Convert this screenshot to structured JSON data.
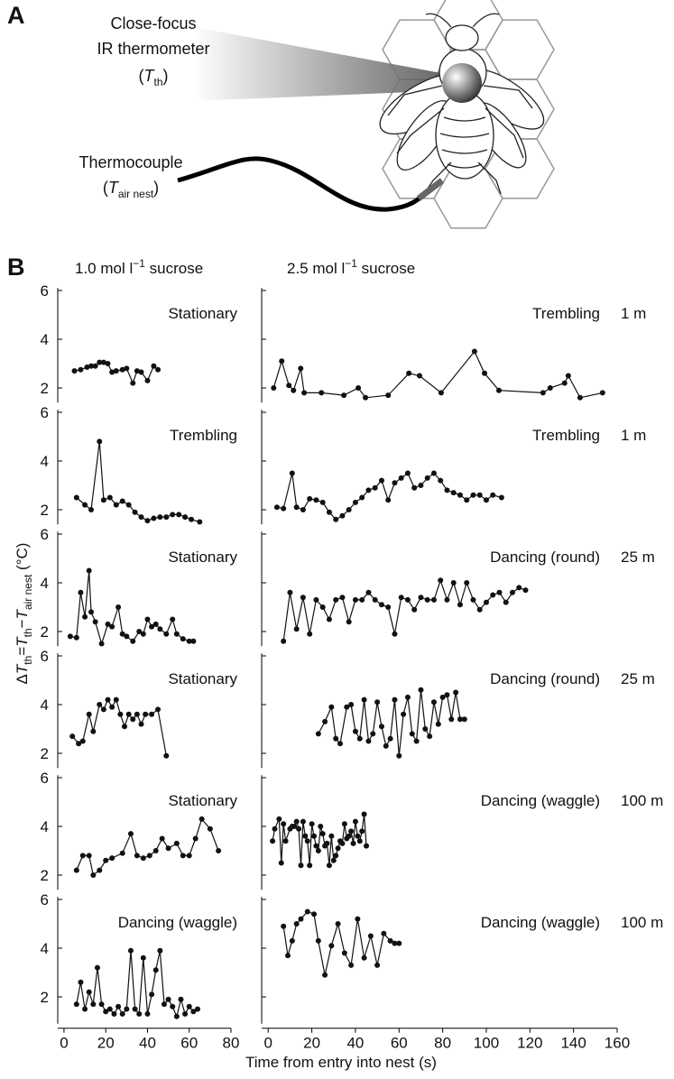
{
  "panel_a": {
    "letter": "A",
    "thermometer": [
      "Close-focus",
      "IR thermometer"
    ],
    "thermometer_symbol": [
      {
        "text": "("
      },
      {
        "text": "T",
        "style": "italic"
      },
      {
        "text": "th",
        "style": "sub"
      },
      {
        "text": ")"
      }
    ],
    "thermocouple": "Thermocouple",
    "thermocouple_symbol": [
      {
        "text": "("
      },
      {
        "text": "T",
        "style": "italic"
      },
      {
        "text": "air nest",
        "style": "sub"
      },
      {
        "text": ")"
      }
    ]
  },
  "panel_b": {
    "letter": "B",
    "column_titles": [
      [
        {
          "text": "1.0 mol l"
        },
        {
          "text": "−1",
          "style": "sup"
        },
        {
          "text": " sucrose"
        }
      ],
      [
        {
          "text": "2.5 mol l"
        },
        {
          "text": "−1",
          "style": "sup"
        },
        {
          "text": " sucrose"
        }
      ]
    ],
    "y_label": [
      {
        "text": "Δ"
      },
      {
        "text": "T",
        "style": "italic"
      },
      {
        "text": "th",
        "style": "sub"
      },
      {
        "text": "="
      },
      {
        "text": "T",
        "style": "italic"
      },
      {
        "text": "th",
        "style": "sub"
      },
      {
        "text": "−"
      },
      {
        "text": "T",
        "style": "italic"
      },
      {
        "text": "air nest",
        "style": "sub"
      },
      {
        "text": " (°C)"
      }
    ],
    "x_label": "Time from entry into nest (s)"
  },
  "chart_data": [
    {
      "type": "line",
      "title": "Stationary",
      "color": "#111",
      "xlim": [
        -3,
        80
      ],
      "ylim": [
        1.4,
        6.1
      ],
      "yticks": [
        2,
        4,
        6
      ],
      "ytick_labels": true,
      "x": [
        5,
        8,
        11,
        13,
        15,
        17,
        19,
        21,
        23,
        25,
        28,
        30,
        33,
        35,
        37,
        40,
        43,
        45
      ],
      "values": [
        2.7,
        2.75,
        2.85,
        2.9,
        2.9,
        3.05,
        3.05,
        3.0,
        2.65,
        2.7,
        2.75,
        2.8,
        2.2,
        2.7,
        2.65,
        2.3,
        2.9,
        2.75
      ]
    },
    {
      "type": "line",
      "title": "Trembling",
      "annotation": "1 m",
      "color": "#111",
      "xlim": [
        -3,
        160
      ],
      "ylim": [
        1.4,
        6.1
      ],
      "yticks": [
        2,
        4,
        6
      ],
      "ytick_labels": false,
      "x": [
        2.5,
        6.2,
        9.5,
        11.6,
        14.9,
        16.5,
        24.4,
        34.7,
        41.3,
        44.6,
        55,
        64.5,
        69.4,
        79.3,
        94.6,
        99.2,
        105.8,
        126,
        129.3,
        135.9,
        137.6,
        143,
        153.3
      ],
      "values": [
        2.0,
        3.1,
        2.1,
        1.9,
        2.8,
        1.8,
        1.8,
        1.7,
        2.0,
        1.6,
        1.7,
        2.6,
        2.5,
        1.8,
        3.5,
        2.6,
        1.9,
        1.8,
        2.0,
        2.2,
        2.5,
        1.6,
        1.8
      ]
    },
    {
      "type": "line",
      "title": "Trembling",
      "color": "#111",
      "xlim": [
        -3,
        80
      ],
      "ylim": [
        1.4,
        6.1
      ],
      "yticks": [
        2,
        4,
        6
      ],
      "ytick_labels": true,
      "x": [
        6,
        10,
        13,
        17,
        19,
        22,
        25,
        28,
        31,
        34,
        37,
        40,
        43,
        46,
        49,
        52,
        55,
        58,
        61,
        65
      ],
      "values": [
        2.5,
        2.2,
        2.0,
        4.8,
        2.4,
        2.5,
        2.2,
        2.35,
        2.2,
        1.9,
        1.7,
        1.55,
        1.65,
        1.7,
        1.7,
        1.8,
        1.8,
        1.7,
        1.6,
        1.5
      ]
    },
    {
      "type": "line",
      "title": "Trembling",
      "annotation": "1 m",
      "color": "#111",
      "xlim": [
        -3,
        160
      ],
      "ylim": [
        1.4,
        6.1
      ],
      "yticks": [
        2,
        4,
        6
      ],
      "ytick_labels": false,
      "x": [
        4,
        7,
        11,
        13,
        16,
        19,
        22,
        25,
        28,
        31,
        34,
        37,
        40,
        43,
        46,
        49,
        52,
        55,
        58,
        61,
        64,
        67,
        70,
        73,
        76,
        79,
        82,
        85,
        88,
        91,
        94,
        97,
        100,
        103,
        107
      ],
      "values": [
        2.1,
        2.05,
        3.5,
        2.1,
        2.0,
        2.45,
        2.4,
        2.3,
        1.9,
        1.6,
        1.75,
        2.0,
        2.3,
        2.5,
        2.8,
        2.9,
        3.2,
        2.4,
        3.1,
        3.3,
        3.5,
        2.9,
        3.0,
        3.3,
        3.5,
        3.2,
        2.8,
        2.7,
        2.6,
        2.4,
        2.6,
        2.6,
        2.4,
        2.6,
        2.5
      ]
    },
    {
      "type": "line",
      "title": "Stationary",
      "color": "#111",
      "xlim": [
        -3,
        80
      ],
      "ylim": [
        1.4,
        6.1
      ],
      "yticks": [
        2,
        4,
        6
      ],
      "ytick_labels": true,
      "x": [
        3,
        6,
        8,
        10,
        12,
        13,
        15,
        18,
        21,
        23,
        26,
        28,
        30,
        33,
        36,
        38,
        40,
        42,
        44,
        46,
        49,
        52,
        54,
        57,
        60,
        62
      ],
      "values": [
        1.8,
        1.75,
        3.6,
        2.6,
        4.5,
        2.8,
        2.4,
        1.5,
        2.3,
        2.2,
        3.0,
        1.9,
        1.8,
        1.6,
        2.0,
        1.9,
        2.5,
        2.2,
        2.3,
        2.1,
        1.9,
        2.5,
        1.9,
        1.7,
        1.6,
        1.6
      ]
    },
    {
      "type": "line",
      "title": "Dancing (round)",
      "annotation": "25 m",
      "color": "#111",
      "xlim": [
        -3,
        160
      ],
      "ylim": [
        1.4,
        6.1
      ],
      "yticks": [
        2,
        4,
        6
      ],
      "ytick_labels": false,
      "x": [
        7,
        10,
        13,
        16,
        19,
        22,
        25,
        28,
        31,
        34,
        37,
        40,
        43,
        46,
        49,
        52,
        55,
        58,
        61,
        64,
        67,
        70,
        73,
        76,
        79,
        82,
        85,
        88,
        91,
        94,
        97,
        100,
        103,
        106,
        109,
        112,
        115,
        118
      ],
      "values": [
        1.6,
        3.6,
        2.1,
        3.4,
        1.9,
        3.3,
        3.0,
        2.5,
        3.3,
        3.4,
        2.4,
        3.3,
        3.3,
        3.6,
        3.3,
        3.1,
        3.0,
        1.9,
        3.4,
        3.3,
        2.9,
        3.4,
        3.3,
        3.3,
        4.1,
        3.3,
        4.0,
        3.1,
        4.0,
        3.3,
        2.9,
        3.2,
        3.5,
        3.6,
        3.2,
        3.6,
        3.8,
        3.7
      ]
    },
    {
      "type": "line",
      "title": "Stationary",
      "color": "#111",
      "xlim": [
        -3,
        80
      ],
      "ylim": [
        1.4,
        6.1
      ],
      "yticks": [
        2,
        4,
        6
      ],
      "ytick_labels": true,
      "x": [
        4,
        7,
        9,
        12,
        14,
        17,
        19,
        21,
        23,
        25,
        27,
        29,
        31,
        33,
        35,
        37,
        39,
        42,
        45,
        49
      ],
      "values": [
        2.7,
        2.4,
        2.5,
        3.6,
        2.9,
        4.0,
        3.8,
        4.2,
        3.9,
        4.2,
        3.6,
        3.1,
        3.6,
        3.4,
        3.6,
        3.2,
        3.6,
        3.6,
        3.8,
        1.9
      ]
    },
    {
      "type": "line",
      "title": "Dancing (round)",
      "annotation": "25 m",
      "color": "#111",
      "xlim": [
        -3,
        160
      ],
      "ylim": [
        1.4,
        6.1
      ],
      "yticks": [
        2,
        4,
        6
      ],
      "ytick_labels": false,
      "x": [
        23,
        26,
        29,
        31,
        33,
        36,
        38,
        40,
        42,
        44,
        46,
        48,
        50,
        52,
        54,
        56,
        58,
        60,
        62,
        64,
        66,
        68,
        70,
        72,
        74,
        76,
        78,
        80,
        82,
        84,
        86,
        88,
        90
      ],
      "values": [
        2.8,
        3.3,
        3.9,
        2.6,
        2.4,
        3.9,
        4.0,
        2.9,
        2.6,
        4.2,
        2.5,
        2.8,
        4.1,
        3.1,
        2.3,
        2.6,
        4.2,
        1.9,
        3.6,
        4.3,
        2.8,
        2.5,
        4.6,
        3.0,
        2.7,
        4.1,
        3.2,
        4.3,
        4.4,
        3.4,
        4.5,
        3.4,
        3.4
      ]
    },
    {
      "type": "line",
      "title": "Stationary",
      "color": "#111",
      "xlim": [
        -3,
        80
      ],
      "ylim": [
        1.4,
        6.1
      ],
      "yticks": [
        2,
        4,
        6
      ],
      "ytick_labels": true,
      "x": [
        6,
        9,
        12,
        14,
        17,
        20,
        23,
        28,
        32,
        35,
        38,
        41,
        44,
        47,
        50,
        54,
        57,
        60,
        63,
        66,
        70,
        74
      ],
      "values": [
        2.2,
        2.8,
        2.8,
        2.0,
        2.2,
        2.6,
        2.7,
        2.9,
        3.7,
        2.8,
        2.7,
        2.8,
        3.0,
        3.5,
        3.1,
        3.3,
        2.8,
        2.8,
        3.5,
        4.3,
        3.9,
        3.0
      ]
    },
    {
      "type": "line",
      "title": "Dancing (waggle)",
      "annotation": "100 m",
      "color": "#111",
      "xlim": [
        -3,
        160
      ],
      "ylim": [
        1.4,
        6.1
      ],
      "yticks": [
        2,
        4,
        6
      ],
      "ytick_labels": false,
      "x": [
        2,
        3,
        5,
        6,
        7,
        8,
        10,
        11,
        12,
        13,
        14,
        15,
        16,
        17,
        18,
        19,
        20,
        21,
        22,
        23,
        24,
        25,
        26,
        27,
        28,
        29,
        30,
        31,
        32,
        33,
        34,
        35,
        36,
        37,
        38,
        39,
        40,
        41,
        42,
        43,
        44,
        45
      ],
      "values": [
        3.4,
        3.9,
        4.3,
        2.5,
        4.1,
        3.4,
        3.9,
        4.0,
        4.0,
        4.2,
        3.9,
        2.4,
        4.2,
        3.6,
        3.4,
        2.4,
        4.1,
        3.6,
        3.2,
        3.0,
        4.0,
        3.7,
        3.2,
        3.3,
        2.4,
        3.6,
        2.6,
        2.8,
        3.1,
        3.4,
        3.3,
        4.1,
        3.5,
        3.6,
        3.8,
        3.3,
        4.2,
        3.6,
        3.4,
        3.8,
        4.5,
        3.2
      ]
    },
    {
      "type": "line",
      "title": "Dancing (waggle)",
      "color": "#111",
      "xlim": [
        -3,
        80
      ],
      "ylim": [
        0.9,
        6.1
      ],
      "yticks": [
        2,
        4,
        6
      ],
      "ytick_labels": true,
      "xticks": [
        0,
        20,
        40,
        60,
        80
      ],
      "x": [
        6,
        8,
        10,
        12,
        14,
        16,
        18,
        20,
        22,
        24,
        26,
        28,
        30,
        32,
        34,
        36,
        38,
        40,
        42,
        44,
        46,
        48,
        50,
        52,
        54,
        56,
        58,
        60,
        62,
        64
      ],
      "values": [
        1.7,
        2.6,
        1.5,
        2.2,
        1.7,
        3.2,
        1.7,
        1.4,
        1.5,
        1.3,
        1.6,
        1.3,
        1.5,
        3.9,
        1.5,
        1.3,
        3.6,
        1.3,
        2.1,
        3.1,
        3.9,
        1.7,
        1.9,
        1.6,
        1.2,
        1.9,
        1.3,
        1.6,
        1.4,
        1.5
      ]
    },
    {
      "type": "line",
      "title": "Dancing (waggle)",
      "annotation": "100 m",
      "color": "#111",
      "xlim": [
        -3,
        160
      ],
      "ylim": [
        0.9,
        6.1
      ],
      "yticks": [
        2,
        4,
        6
      ],
      "ytick_labels": false,
      "xticks": [
        0,
        20,
        40,
        60,
        80,
        100,
        120,
        140,
        160
      ],
      "x": [
        7,
        9,
        11,
        13,
        15,
        18,
        21,
        23,
        26,
        29,
        32,
        35,
        38,
        41,
        44,
        47,
        50,
        53,
        56,
        58,
        60
      ],
      "values": [
        4.9,
        3.7,
        4.3,
        5.0,
        5.2,
        5.5,
        5.4,
        4.3,
        2.9,
        4.1,
        5.0,
        3.8,
        3.3,
        5.2,
        3.6,
        4.5,
        3.3,
        4.6,
        4.3,
        4.2,
        4.2
      ]
    }
  ]
}
